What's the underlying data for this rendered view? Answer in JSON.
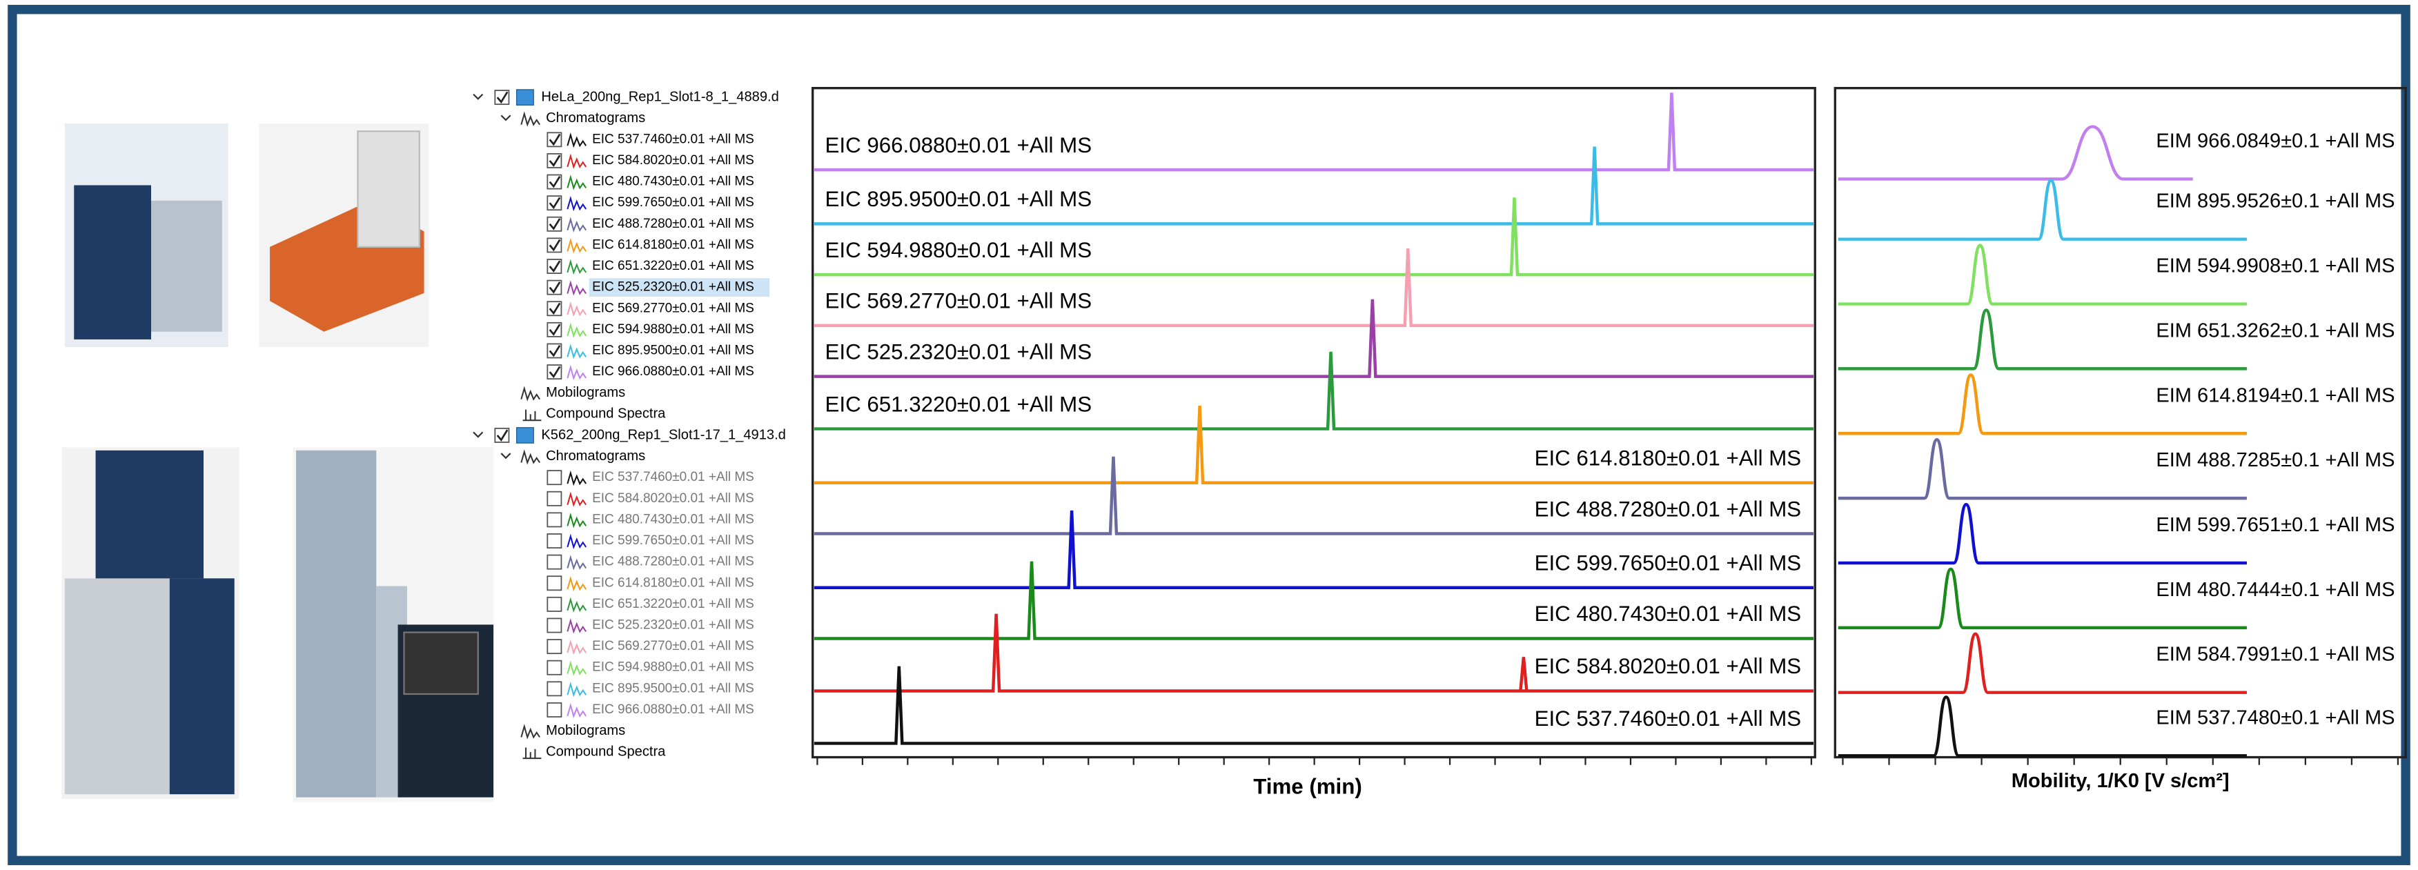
{
  "tree": {
    "files": [
      {
        "name": "HeLa_200ng_Rep1_Slot1-8_1_4889.d",
        "checked": true,
        "chromatograms": "Chromatograms",
        "mobilograms": "Mobilograms",
        "compound_spectra": "Compound Spectra",
        "items": [
          {
            "label": "EIC 537.7460±0.01 +All MS",
            "checked": true,
            "color": "#111111"
          },
          {
            "label": "EIC 584.8020±0.01 +All MS",
            "checked": true,
            "color": "#e02020"
          },
          {
            "label": "EIC 480.7430±0.01 +All MS",
            "checked": true,
            "color": "#1a8a1a"
          },
          {
            "label": "EIC 599.7650±0.01 +All MS",
            "checked": true,
            "color": "#1010d0"
          },
          {
            "label": "EIC 488.7280±0.01 +All MS",
            "checked": true,
            "color": "#6a6aa0"
          },
          {
            "label": "EIC 614.8180±0.01 +All MS",
            "checked": true,
            "color": "#f59a10"
          },
          {
            "label": "EIC 651.3220±0.01 +All MS",
            "checked": true,
            "color": "#2a9a3a"
          },
          {
            "label": "EIC 525.2320±0.01 +All MS",
            "checked": true,
            "color": "#9b3fa8",
            "selected": true
          },
          {
            "label": "EIC 569.2770±0.01 +All MS",
            "checked": true,
            "color": "#f4a0b0"
          },
          {
            "label": "EIC 594.9880±0.01 +All MS",
            "checked": true,
            "color": "#80e060"
          },
          {
            "label": "EIC 895.9500±0.01 +All MS",
            "checked": true,
            "color": "#3bbbe8"
          },
          {
            "label": "EIC 966.0880±0.01 +All MS",
            "checked": true,
            "color": "#c080f0"
          }
        ]
      },
      {
        "name": "K562_200ng_Rep1_Slot1-17_1_4913.d",
        "checked": true,
        "chromatograms": "Chromatograms",
        "mobilograms": "Mobilograms",
        "compound_spectra": "Compound Spectra",
        "items": [
          {
            "label": "EIC 537.7460±0.01 +All MS",
            "checked": false,
            "color": "#111111"
          },
          {
            "label": "EIC 584.8020±0.01 +All MS",
            "checked": false,
            "color": "#e02020"
          },
          {
            "label": "EIC 480.7430±0.01 +All MS",
            "checked": false,
            "color": "#1a8a1a"
          },
          {
            "label": "EIC 599.7650±0.01 +All MS",
            "checked": false,
            "color": "#1010d0"
          },
          {
            "label": "EIC 488.7280±0.01 +All MS",
            "checked": false,
            "color": "#6a6aa0"
          },
          {
            "label": "EIC 614.8180±0.01 +All MS",
            "checked": false,
            "color": "#f59a10"
          },
          {
            "label": "EIC 651.3220±0.01 +All MS",
            "checked": false,
            "color": "#2a9a3a"
          },
          {
            "label": "EIC 525.2320±0.01 +All MS",
            "checked": false,
            "color": "#9b3fa8"
          },
          {
            "label": "EIC 569.2770±0.01 +All MS",
            "checked": false,
            "color": "#f4a0b0"
          },
          {
            "label": "EIC 594.9880±0.01 +All MS",
            "checked": false,
            "color": "#80e060"
          },
          {
            "label": "EIC 895.9500±0.01 +All MS",
            "checked": false,
            "color": "#3bbbe8"
          },
          {
            "label": "EIC 966.0880±0.01 +All MS",
            "checked": false,
            "color": "#c080f0"
          }
        ]
      }
    ]
  },
  "eic_panel": {
    "x_label": "Time (min)",
    "traces": [
      {
        "label": "EIC 966.0880±0.01 +All MS",
        "color": "#c080f0"
      },
      {
        "label": "EIC 895.9500±0.01 +All MS",
        "color": "#3bbbe8"
      },
      {
        "label": "EIC 594.9880±0.01 +All MS",
        "color": "#80e060"
      },
      {
        "label": "EIC 569.2770±0.01 +All MS",
        "color": "#f4a0b0"
      },
      {
        "label": "EIC 525.2320±0.01 +All MS",
        "color": "#9b3fa8"
      },
      {
        "label": "EIC 651.3220±0.01 +All MS",
        "color": "#2a9a3a"
      },
      {
        "label": "EIC 614.8180±0.01 +All MS",
        "color": "#f59a10"
      },
      {
        "label": "EIC 488.7280±0.01 +All MS",
        "color": "#6a6aa0"
      },
      {
        "label": "EIC 599.7650±0.01 +All MS",
        "color": "#1010d0"
      },
      {
        "label": "EIC 480.7430±0.01 +All MS",
        "color": "#1a8a1a"
      },
      {
        "label": "EIC 584.8020±0.01 +All MS",
        "color": "#e02020"
      },
      {
        "label": "EIC 537.7460±0.01 +All MS",
        "color": "#111111"
      }
    ]
  },
  "eim_panel": {
    "x_label": "Mobility, 1/K0 [V s/cm²]",
    "traces": [
      {
        "label": "EIM 966.0849±0.1 +All MS",
        "color": "#c080f0"
      },
      {
        "label": "EIM 895.9526±0.1 +All MS",
        "color": "#3bbbe8"
      },
      {
        "label": "EIM 594.9908±0.1 +All MS",
        "color": "#80e060"
      },
      {
        "label": "EIM 651.3262±0.1 +All MS",
        "color": "#2a9a3a"
      },
      {
        "label": "EIM 614.8194±0.1 +All MS",
        "color": "#f59a10"
      },
      {
        "label": "EIM 488.7285±0.1 +All MS",
        "color": "#6a6aa0"
      },
      {
        "label": "EIM 599.7651±0.1 +All MS",
        "color": "#1010d0"
      },
      {
        "label": "EIM 480.7444±0.1 +All MS",
        "color": "#1a8a1a"
      },
      {
        "label": "EIM 584.7991±0.1 +All MS",
        "color": "#e02020"
      },
      {
        "label": "EIM 537.7480±0.1 +All MS",
        "color": "#111111"
      }
    ]
  }
}
